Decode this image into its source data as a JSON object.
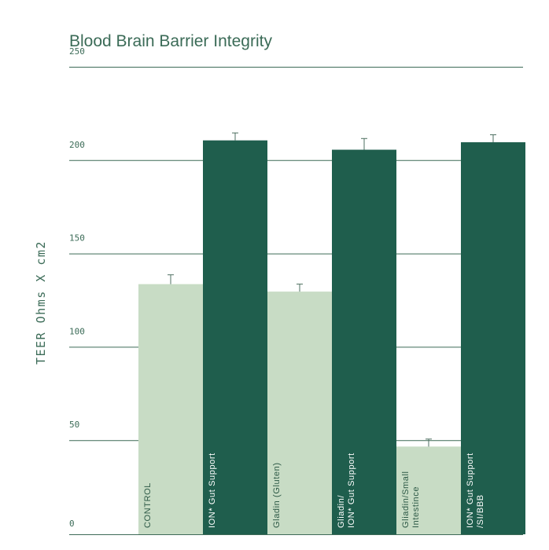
{
  "chart_data": {
    "type": "bar",
    "title": "Blood Brain Barrier Integrity",
    "ylabel": "TEER Ohms X cm2",
    "xlabel": "",
    "ylim": [
      0,
      250
    ],
    "yticks": [
      0,
      50,
      100,
      150,
      200,
      250
    ],
    "grid": true,
    "categories": [
      [
        "CONTROL"
      ],
      [
        "ION* Gut Support"
      ],
      [
        "Gladin (Gluten)"
      ],
      [
        "Gliadin/",
        "ION* Gut Support"
      ],
      [
        "Gliadin/Small",
        "Intestince"
      ],
      [
        "ION* Gut Support",
        "/SI/BBB"
      ]
    ],
    "values": [
      134,
      211,
      130,
      206,
      47,
      210
    ],
    "errors": [
      5,
      4,
      4,
      6,
      4,
      4
    ],
    "colors": [
      "#c8dcc5",
      "#1f5e4d",
      "#c8dcc5",
      "#1f5e4d",
      "#c8dcc5",
      "#1f5e4d"
    ],
    "label_colors": [
      "light",
      "dark",
      "light",
      "dark",
      "light",
      "dark"
    ]
  }
}
